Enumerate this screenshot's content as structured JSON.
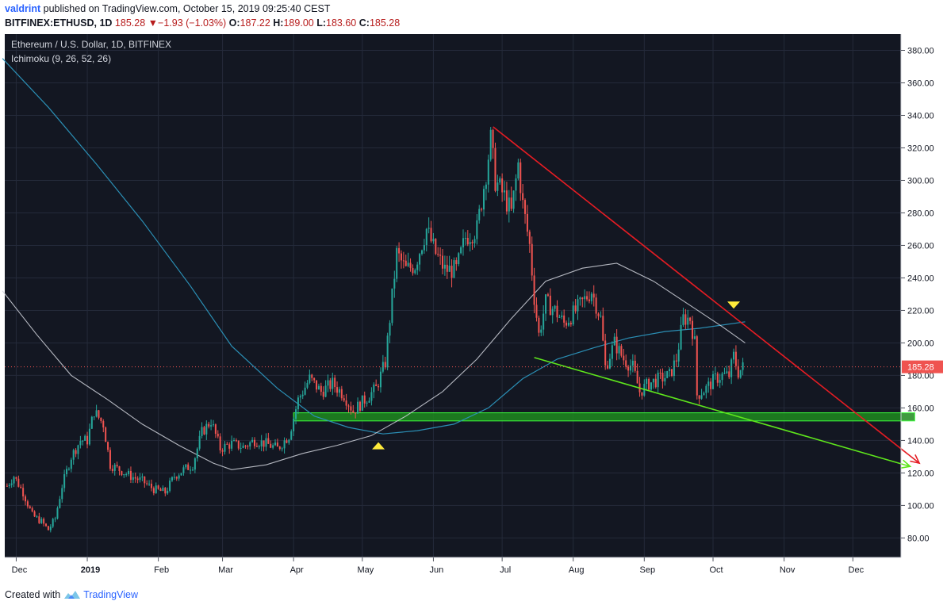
{
  "header": {
    "user": "valdrint",
    "published_text": "published on TradingView.com, October 15, 2019 09:25:40 CEST",
    "symbol": "BITFINEX:ETHUSD, 1D",
    "last": "185.28",
    "change_arrow": "▼",
    "change": "−1.93 (−1.03%)",
    "open_label": "O:",
    "open": "187.22",
    "high_label": "H:",
    "high": "189.00",
    "low_label": "L:",
    "low": "183.60",
    "close_label": "C:",
    "close": "185.28"
  },
  "legend": {
    "title": "Ethereum / U.S. Dollar, 1D, BITFINEX",
    "indicator": "Ichimoku (9, 26, 52, 26)"
  },
  "footer": {
    "created_with": "Created with",
    "brand": "TradingView",
    "brand_icon": "tradingview-logo-icon"
  },
  "chart_data": {
    "type": "candlestick",
    "x_ticks": [
      "Dec",
      "2019",
      "Feb",
      "Mar",
      "Apr",
      "May",
      "Jun",
      "Jul",
      "Aug",
      "Sep",
      "Oct",
      "Nov",
      "Dec"
    ],
    "y_ticks": [
      80,
      100,
      120,
      140,
      160,
      180,
      200,
      220,
      240,
      260,
      280,
      300,
      320,
      340,
      360,
      380
    ],
    "ylim": [
      68,
      390
    ],
    "last_price": 185.28,
    "last_price_label": "185.28",
    "colors": {
      "background": "#131722",
      "up": "#26a69a",
      "down": "#ef5350",
      "resistance_line": "#e51c23",
      "support_line": "#5ee61c",
      "support_zone": "#1e8a1e",
      "white_ma": "#d1d4dc",
      "blue_ma": "#2b8fb5",
      "marker": "#ffeb3b",
      "price_tag": "#ef5350"
    },
    "price_path_daily_close": [
      [
        "2018-11-27",
        112
      ],
      [
        "2018-11-30",
        118
      ],
      [
        "2018-12-04",
        108
      ],
      [
        "2018-12-08",
        94
      ],
      [
        "2018-12-12",
        90
      ],
      [
        "2018-12-15",
        85
      ],
      [
        "2018-12-18",
        92
      ],
      [
        "2018-12-21",
        112
      ],
      [
        "2018-12-25",
        130
      ],
      [
        "2018-12-29",
        140
      ],
      [
        "2019-01-01",
        140
      ],
      [
        "2019-01-04",
        158
      ],
      [
        "2019-01-08",
        150
      ],
      [
        "2019-01-11",
        125
      ],
      [
        "2019-01-15",
        122
      ],
      [
        "2019-01-20",
        118
      ],
      [
        "2019-01-25",
        115
      ],
      [
        "2019-01-30",
        110
      ],
      [
        "2019-02-04",
        108
      ],
      [
        "2019-02-08",
        118
      ],
      [
        "2019-02-12",
        122
      ],
      [
        "2019-02-16",
        125
      ],
      [
        "2019-02-20",
        145
      ],
      [
        "2019-02-24",
        152
      ],
      [
        "2019-02-28",
        135
      ],
      [
        "2019-03-05",
        138
      ],
      [
        "2019-03-10",
        136
      ],
      [
        "2019-03-15",
        140
      ],
      [
        "2019-03-20",
        138
      ],
      [
        "2019-03-25",
        135
      ],
      [
        "2019-03-30",
        143
      ],
      [
        "2019-04-03",
        165
      ],
      [
        "2019-04-08",
        178
      ],
      [
        "2019-04-13",
        170
      ],
      [
        "2019-04-18",
        175
      ],
      [
        "2019-04-23",
        168
      ],
      [
        "2019-04-27",
        158
      ],
      [
        "2019-05-02",
        165
      ],
      [
        "2019-05-07",
        172
      ],
      [
        "2019-05-11",
        188
      ],
      [
        "2019-05-13",
        215
      ],
      [
        "2019-05-16",
        255
      ],
      [
        "2019-05-20",
        245
      ],
      [
        "2019-05-24",
        248
      ],
      [
        "2019-05-29",
        270
      ],
      [
        "2019-06-02",
        255
      ],
      [
        "2019-06-06",
        245
      ],
      [
        "2019-06-11",
        245
      ],
      [
        "2019-06-15",
        265
      ],
      [
        "2019-06-20",
        270
      ],
      [
        "2019-06-24",
        305
      ],
      [
        "2019-06-26",
        325
      ],
      [
        "2019-06-28",
        300
      ],
      [
        "2019-07-02",
        290
      ],
      [
        "2019-07-05",
        280
      ],
      [
        "2019-07-08",
        310
      ],
      [
        "2019-07-10",
        285
      ],
      [
        "2019-07-13",
        260
      ],
      [
        "2019-07-15",
        228
      ],
      [
        "2019-07-17",
        205
      ],
      [
        "2019-07-20",
        225
      ],
      [
        "2019-07-24",
        220
      ],
      [
        "2019-07-28",
        212
      ],
      [
        "2019-08-01",
        218
      ],
      [
        "2019-08-05",
        225
      ],
      [
        "2019-08-09",
        232
      ],
      [
        "2019-08-13",
        215
      ],
      [
        "2019-08-15",
        185
      ],
      [
        "2019-08-19",
        200
      ],
      [
        "2019-08-23",
        190
      ],
      [
        "2019-08-27",
        185
      ],
      [
        "2019-08-30",
        170
      ],
      [
        "2019-09-03",
        175
      ],
      [
        "2019-09-08",
        178
      ],
      [
        "2019-09-12",
        180
      ],
      [
        "2019-09-15",
        190
      ],
      [
        "2019-09-18",
        215
      ],
      [
        "2019-09-21",
        215
      ],
      [
        "2019-09-23",
        200
      ],
      [
        "2019-09-24",
        168
      ],
      [
        "2019-09-28",
        172
      ],
      [
        "2019-10-02",
        178
      ],
      [
        "2019-10-05",
        180
      ],
      [
        "2019-10-08",
        180
      ],
      [
        "2019-10-10",
        192
      ],
      [
        "2019-10-12",
        182
      ],
      [
        "2019-10-14",
        185
      ]
    ],
    "white_ma": [
      [
        "2018-11-25",
        232
      ],
      [
        "2018-12-10",
        205
      ],
      [
        "2018-12-25",
        180
      ],
      [
        "2019-01-10",
        165
      ],
      [
        "2019-01-25",
        150
      ],
      [
        "2019-02-10",
        137
      ],
      [
        "2019-02-25",
        126
      ],
      [
        "2019-03-05",
        122
      ],
      [
        "2019-03-20",
        125
      ],
      [
        "2019-04-05",
        132
      ],
      [
        "2019-04-20",
        137
      ],
      [
        "2019-05-05",
        143
      ],
      [
        "2019-05-20",
        155
      ],
      [
        "2019-06-05",
        170
      ],
      [
        "2019-06-20",
        190
      ],
      [
        "2019-07-05",
        215
      ],
      [
        "2019-07-20",
        238
      ],
      [
        "2019-08-05",
        246
      ],
      [
        "2019-08-20",
        249
      ],
      [
        "2019-09-05",
        238
      ],
      [
        "2019-09-20",
        224
      ],
      [
        "2019-10-05",
        210
      ],
      [
        "2019-10-15",
        200
      ]
    ],
    "blue_ma": [
      [
        "2018-11-25",
        375
      ],
      [
        "2018-12-15",
        345
      ],
      [
        "2019-01-05",
        310
      ],
      [
        "2019-01-25",
        275
      ],
      [
        "2019-02-15",
        235
      ],
      [
        "2019-03-05",
        198
      ],
      [
        "2019-03-25",
        172
      ],
      [
        "2019-04-10",
        155
      ],
      [
        "2019-04-25",
        148
      ],
      [
        "2019-05-10",
        144
      ],
      [
        "2019-05-25",
        146
      ],
      [
        "2019-06-10",
        150
      ],
      [
        "2019-06-25",
        160
      ],
      [
        "2019-07-10",
        178
      ],
      [
        "2019-07-25",
        190
      ],
      [
        "2019-08-10",
        197
      ],
      [
        "2019-08-25",
        203
      ],
      [
        "2019-09-10",
        207
      ],
      [
        "2019-09-25",
        209
      ],
      [
        "2019-10-15",
        213
      ]
    ],
    "resistance_line": [
      [
        "2019-06-27",
        333
      ],
      [
        "2019-12-30",
        126
      ]
    ],
    "support_line": [
      [
        "2019-07-15",
        191
      ],
      [
        "2019-12-26",
        124
      ]
    ],
    "support_zone": {
      "from": "2019-04-01",
      "to": "2019-12-28",
      "low": 152,
      "high": 157
    },
    "markers": [
      {
        "direction": "up",
        "date": "2019-05-08",
        "price": 137
      },
      {
        "direction": "down",
        "date": "2019-10-10",
        "price": 223
      }
    ]
  }
}
